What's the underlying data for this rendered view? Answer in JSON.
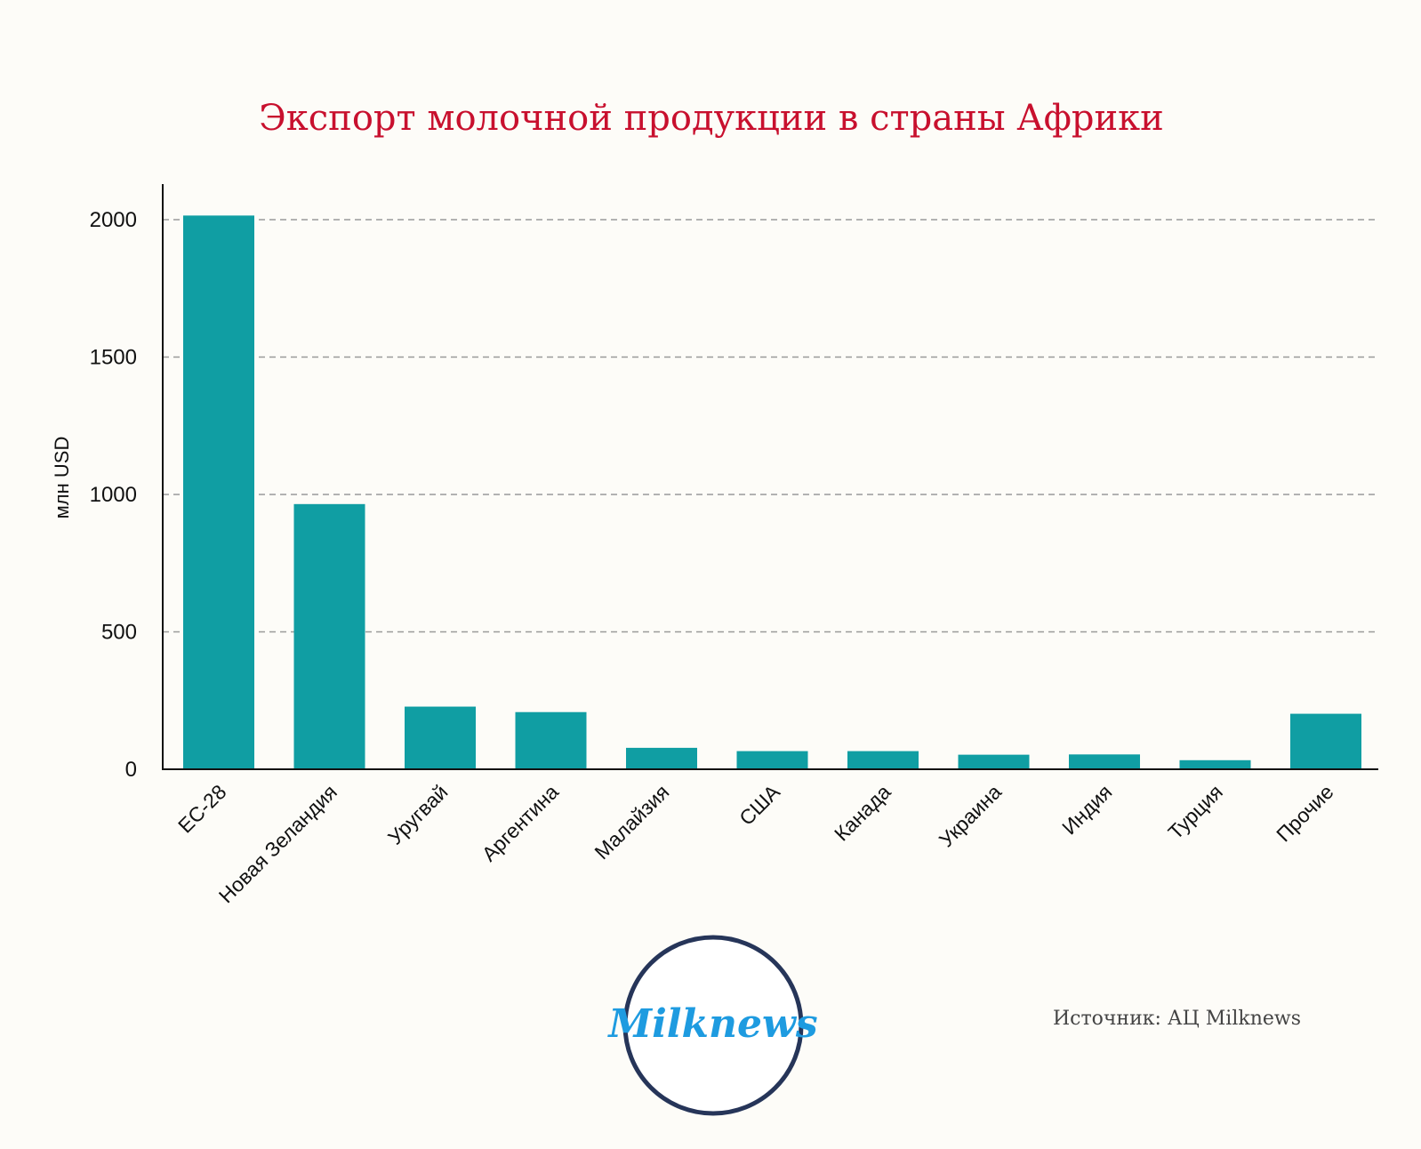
{
  "chart_data": {
    "type": "bar",
    "title": "Экспорт молочной продукции в страны Африки",
    "ylabel": "млн USD",
    "xlabel": "",
    "ylim": [
      0,
      2100
    ],
    "yticks": [
      0,
      500,
      1000,
      1500,
      2000
    ],
    "grid": "horizontal dashed",
    "categories": [
      "ЕС-28",
      "Новая Зеландия",
      "Уругвай",
      "Аргентина",
      "Малайзия",
      "США",
      "Канада",
      "Украина",
      "Индия",
      "Турция",
      "Прочие"
    ],
    "values": [
      2015,
      965,
      228,
      208,
      78,
      66,
      66,
      53,
      54,
      33,
      202
    ],
    "bar_color": "#109ea3"
  },
  "source": "Источник: АЦ Milknews",
  "logo": {
    "text": "Milknews",
    "ring_color": "#263559",
    "text_color": "#1e9be0"
  }
}
